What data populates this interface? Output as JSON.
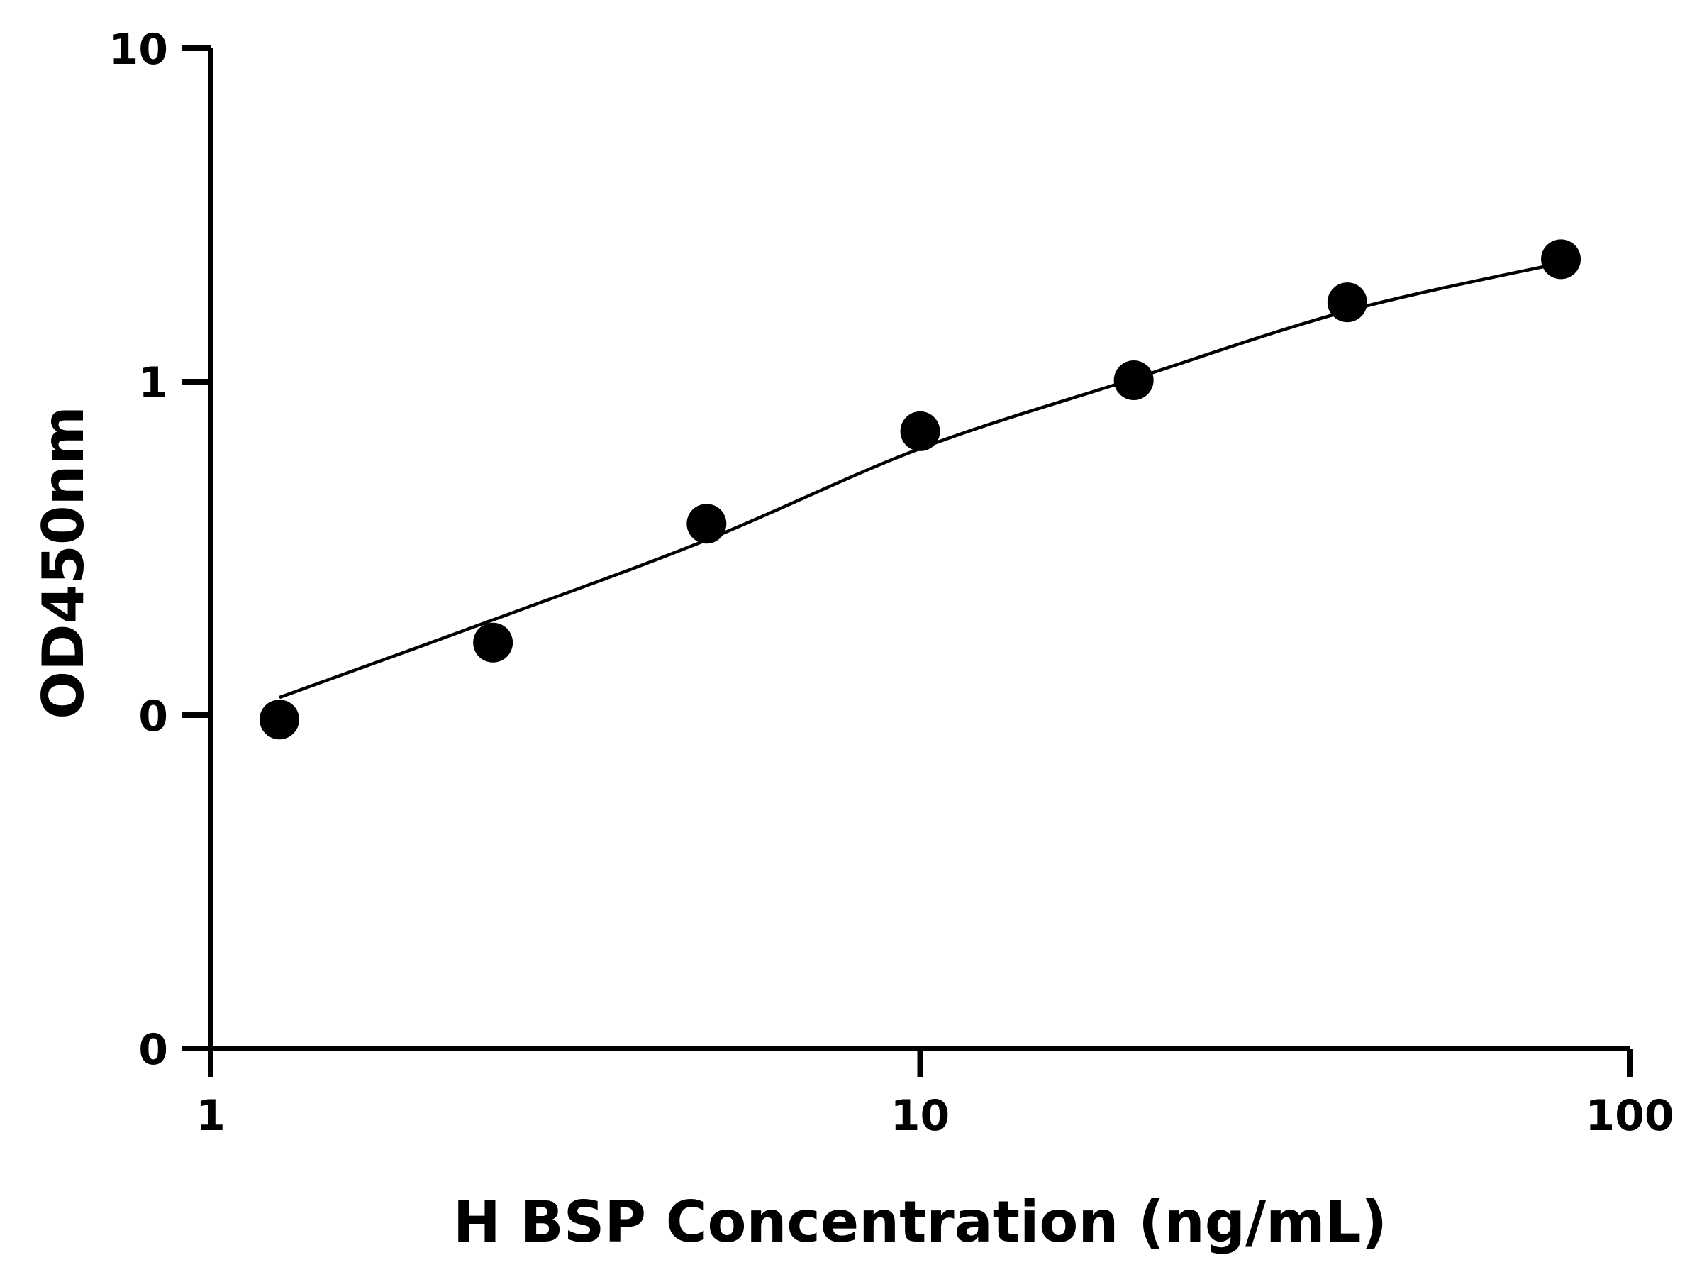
{
  "chart_data": {
    "type": "scatter",
    "xlabel": "H BSP Concentration (ng/mL)",
    "ylabel": "OD450nm",
    "x_scale": "log",
    "y_scale": "log",
    "xlim": [
      1,
      100
    ],
    "ylim": [
      0.01,
      10
    ],
    "x_ticks": [
      {
        "value": 1,
        "label": "1"
      },
      {
        "value": 10,
        "label": "10"
      },
      {
        "value": 100,
        "label": "100"
      }
    ],
    "y_ticks": [
      {
        "value": 0.01,
        "label": "0"
      },
      {
        "value": 0.1,
        "label": "0"
      },
      {
        "value": 1,
        "label": "1"
      },
      {
        "value": 10,
        "label": "10"
      }
    ],
    "grid": false,
    "legend": "none",
    "series": [
      {
        "points": [
          {
            "x": 1.25,
            "y": 0.097
          },
          {
            "x": 2.5,
            "y": 0.165
          },
          {
            "x": 5,
            "y": 0.375
          },
          {
            "x": 10,
            "y": 0.71
          },
          {
            "x": 20,
            "y": 1.01
          },
          {
            "x": 40,
            "y": 1.73
          },
          {
            "x": 80,
            "y": 2.33
          }
        ],
        "fit_curve": [
          {
            "x": 1.25,
            "y": 0.113
          },
          {
            "x": 2.5,
            "y": 0.193
          },
          {
            "x": 5,
            "y": 0.335
          },
          {
            "x": 10,
            "y": 0.63
          },
          {
            "x": 20,
            "y": 1.02
          },
          {
            "x": 40,
            "y": 1.63
          },
          {
            "x": 80,
            "y": 2.27
          }
        ]
      }
    ],
    "colors": {
      "axis": "#000000",
      "points": "#000000",
      "curve": "#000000"
    }
  }
}
